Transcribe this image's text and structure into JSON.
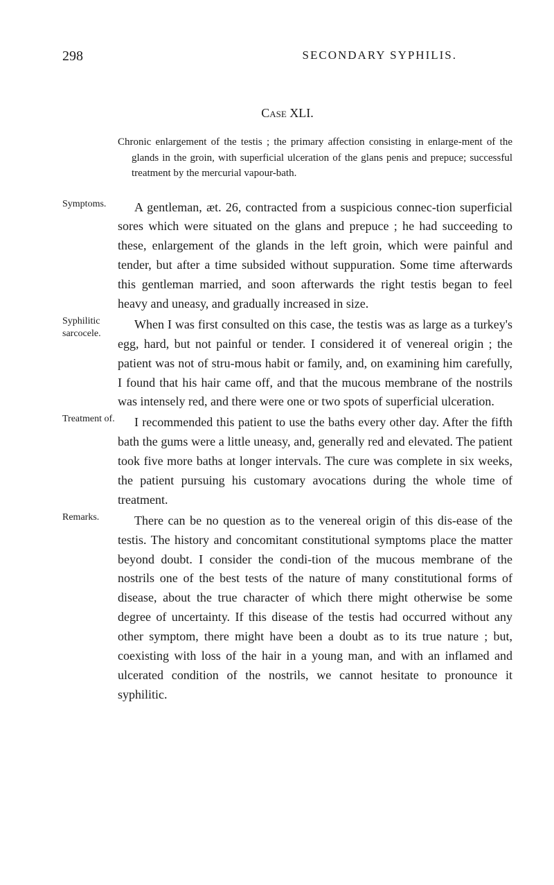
{
  "header": {
    "page_number": "298",
    "running_head": "SECONDARY SYPHILIS."
  },
  "case_title": "Case XLI.",
  "abstract": "Chronic enlargement of the testis ; the primary affection consisting in enlarge-ment of the glands in the groin, with superficial ulceration of the glans penis and prepuce; successful treatment by the mercurial vapour-bath.",
  "margin_notes": {
    "symptoms": "Symptoms.",
    "syphilitic": "Syphilitic sarcocele.",
    "treatment": "Treatment of.",
    "remarks": "Remarks."
  },
  "paragraphs": {
    "p1": "A gentleman, æt. 26, contracted from a suspicious connec-tion superficial sores which were situated on the glans and prepuce ; he had succeeding to these, enlargement of the glands in the left groin, which were painful and tender, but after a time subsided without suppuration. Some time afterwards this gentleman married, and soon afterwards the right testis began to feel heavy and uneasy, and gradually increased in size.",
    "p2": "When I was first consulted on this case, the testis was as large as a turkey's egg, hard, but not painful or tender. I considered it of venereal origin ; the patient was not of stru-mous habit or family, and, on examining him carefully, I found that his hair came off, and that the mucous membrane of the nostrils was intensely red, and there were one or two spots of superficial ulceration.",
    "p3": "I recommended this patient to use the baths every other day. After the fifth bath the gums were a little uneasy, and, generally red and elevated. The patient took five more baths at longer intervals. The cure was complete in six weeks, the patient pursuing his customary avocations during the whole time of treatment.",
    "p4": "There can be no question as to the venereal origin of this dis-ease of the testis. The history and concomitant constitutional symptoms place the matter beyond doubt. I consider the condi-tion of the mucous membrane of the nostrils one of the best tests of the nature of many constitutional forms of disease, about the true character of which there might otherwise be some degree of uncertainty. If this disease of the testis had occurred without any other symptom, there might have been a doubt as to its true nature ; but, coexisting with loss of the hair in a young man, and with an inflamed and ulcerated condition of the nostrils, we cannot hesitate to pronounce it syphilitic."
  },
  "colors": {
    "background": "#ffffff",
    "text": "#1a1a1a"
  },
  "typography": {
    "body_fontsize": 18,
    "abstract_fontsize": 15,
    "margin_note_fontsize": 14,
    "line_height": 1.55
  }
}
